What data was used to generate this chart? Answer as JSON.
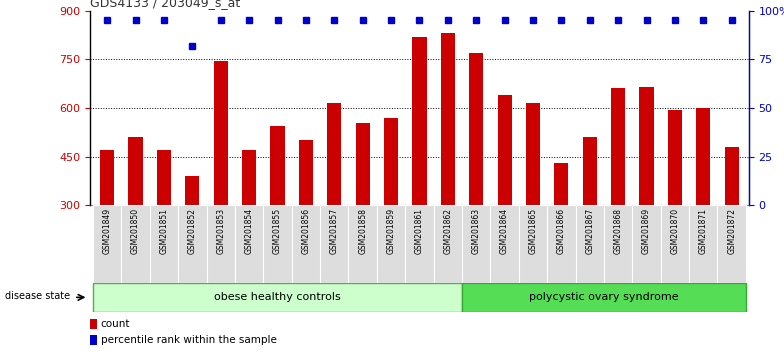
{
  "title": "GDS4133 / 203049_s_at",
  "categories": [
    "GSM201849",
    "GSM201850",
    "GSM201851",
    "GSM201852",
    "GSM201853",
    "GSM201854",
    "GSM201855",
    "GSM201856",
    "GSM201857",
    "GSM201858",
    "GSM201859",
    "GSM201861",
    "GSM201862",
    "GSM201863",
    "GSM201864",
    "GSM201865",
    "GSM201866",
    "GSM201867",
    "GSM201868",
    "GSM201869",
    "GSM201870",
    "GSM201871",
    "GSM201872"
  ],
  "bar_values": [
    470,
    510,
    470,
    390,
    745,
    470,
    545,
    500,
    615,
    555,
    570,
    820,
    830,
    770,
    640,
    615,
    430,
    510,
    660,
    665,
    595,
    600,
    480
  ],
  "percentile_values": [
    95,
    95,
    95,
    82,
    95,
    95,
    95,
    95,
    95,
    95,
    95,
    95,
    95,
    95,
    95,
    95,
    95,
    95,
    95,
    95,
    95,
    95,
    95
  ],
  "bar_color": "#cc0000",
  "dot_color": "#0000cc",
  "ylim_left": [
    300,
    900
  ],
  "ylim_right": [
    0,
    100
  ],
  "yticks_left": [
    300,
    450,
    600,
    750,
    900
  ],
  "ytick_labels_left": [
    "300",
    "450",
    "600",
    "750",
    "900"
  ],
  "yticks_right": [
    0,
    25,
    50,
    75,
    100
  ],
  "ytick_labels_right": [
    "0",
    "25",
    "50",
    "75",
    "100%"
  ],
  "grid_values": [
    450,
    600,
    750
  ],
  "group1_label": "obese healthy controls",
  "group2_label": "polycystic ovary syndrome",
  "group1_count": 13,
  "group2_count": 10,
  "disease_state_label": "disease state",
  "legend_count_label": "count",
  "legend_pct_label": "percentile rank within the sample",
  "group_bg_color1": "#ccffcc",
  "group_bg_color2": "#55dd55",
  "tick_label_bg": "#dddddd",
  "title_color": "#333333",
  "left_axis_color": "#cc0000",
  "right_axis_color": "#0000cc",
  "bar_bottom": 300,
  "bar_width": 0.5
}
